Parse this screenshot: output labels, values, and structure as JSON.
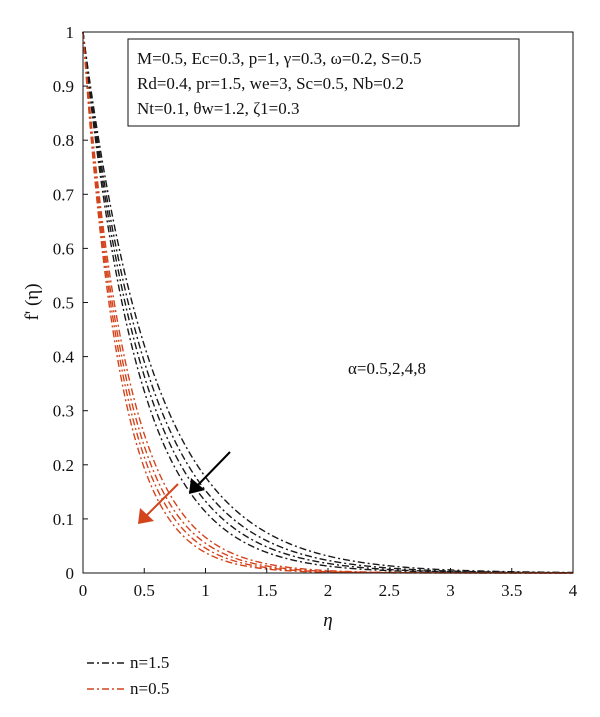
{
  "chart_data": {
    "type": "line",
    "xlabel": "η",
    "ylabel": "f' (η)",
    "xlim": [
      0,
      4
    ],
    "ylim": [
      0,
      1
    ],
    "x_ticks": [
      "0",
      "0.5",
      "1",
      "1.5",
      "2",
      "2.5",
      "3",
      "3.5",
      "4"
    ],
    "y_ticks": [
      "0",
      "0.1",
      "0.2",
      "0.3",
      "0.4",
      "0.5",
      "0.6",
      "0.7",
      "0.8",
      "0.9",
      "1"
    ],
    "grid": false,
    "parameter_box": [
      "M=0.5, Ec=0.3, p=1, γ=0.3, ω=0.2, S=0.5",
      "Rd=0.4, pr=1.5, we=3, Sc=0.5, Nb=0.2",
      "Nt=0.1, θw=1.2, ζ1=0.3"
    ],
    "annotation": "α=0.5,2,4,8",
    "legend_placement": "bottom-left, below the axes",
    "series": [
      {
        "name": "n=1.5",
        "color": "#1a1a1a",
        "alpha": 0.5,
        "decay": 1.73
      },
      {
        "name": "n=1.5",
        "color": "#1a1a1a",
        "alpha": 2,
        "decay": 1.88
      },
      {
        "name": "n=1.5",
        "color": "#1a1a1a",
        "alpha": 4,
        "decay": 2.02
      },
      {
        "name": "n=1.5",
        "color": "#1a1a1a",
        "alpha": 8,
        "decay": 2.18
      },
      {
        "name": "n=0.5",
        "color": "#d4441c",
        "alpha": 0.5,
        "decay": 2.72
      },
      {
        "name": "n=0.5",
        "color": "#d4441c",
        "alpha": 2,
        "decay": 2.9
      },
      {
        "name": "n=0.5",
        "color": "#d4441c",
        "alpha": 4,
        "decay": 3.08
      },
      {
        "name": "n=0.5",
        "color": "#d4441c",
        "alpha": 8,
        "decay": 3.28
      }
    ],
    "legend": [
      {
        "label": "n=1.5",
        "color": "#1a1a1a"
      },
      {
        "label": "n=0.5",
        "color": "#d4441c"
      }
    ]
  }
}
